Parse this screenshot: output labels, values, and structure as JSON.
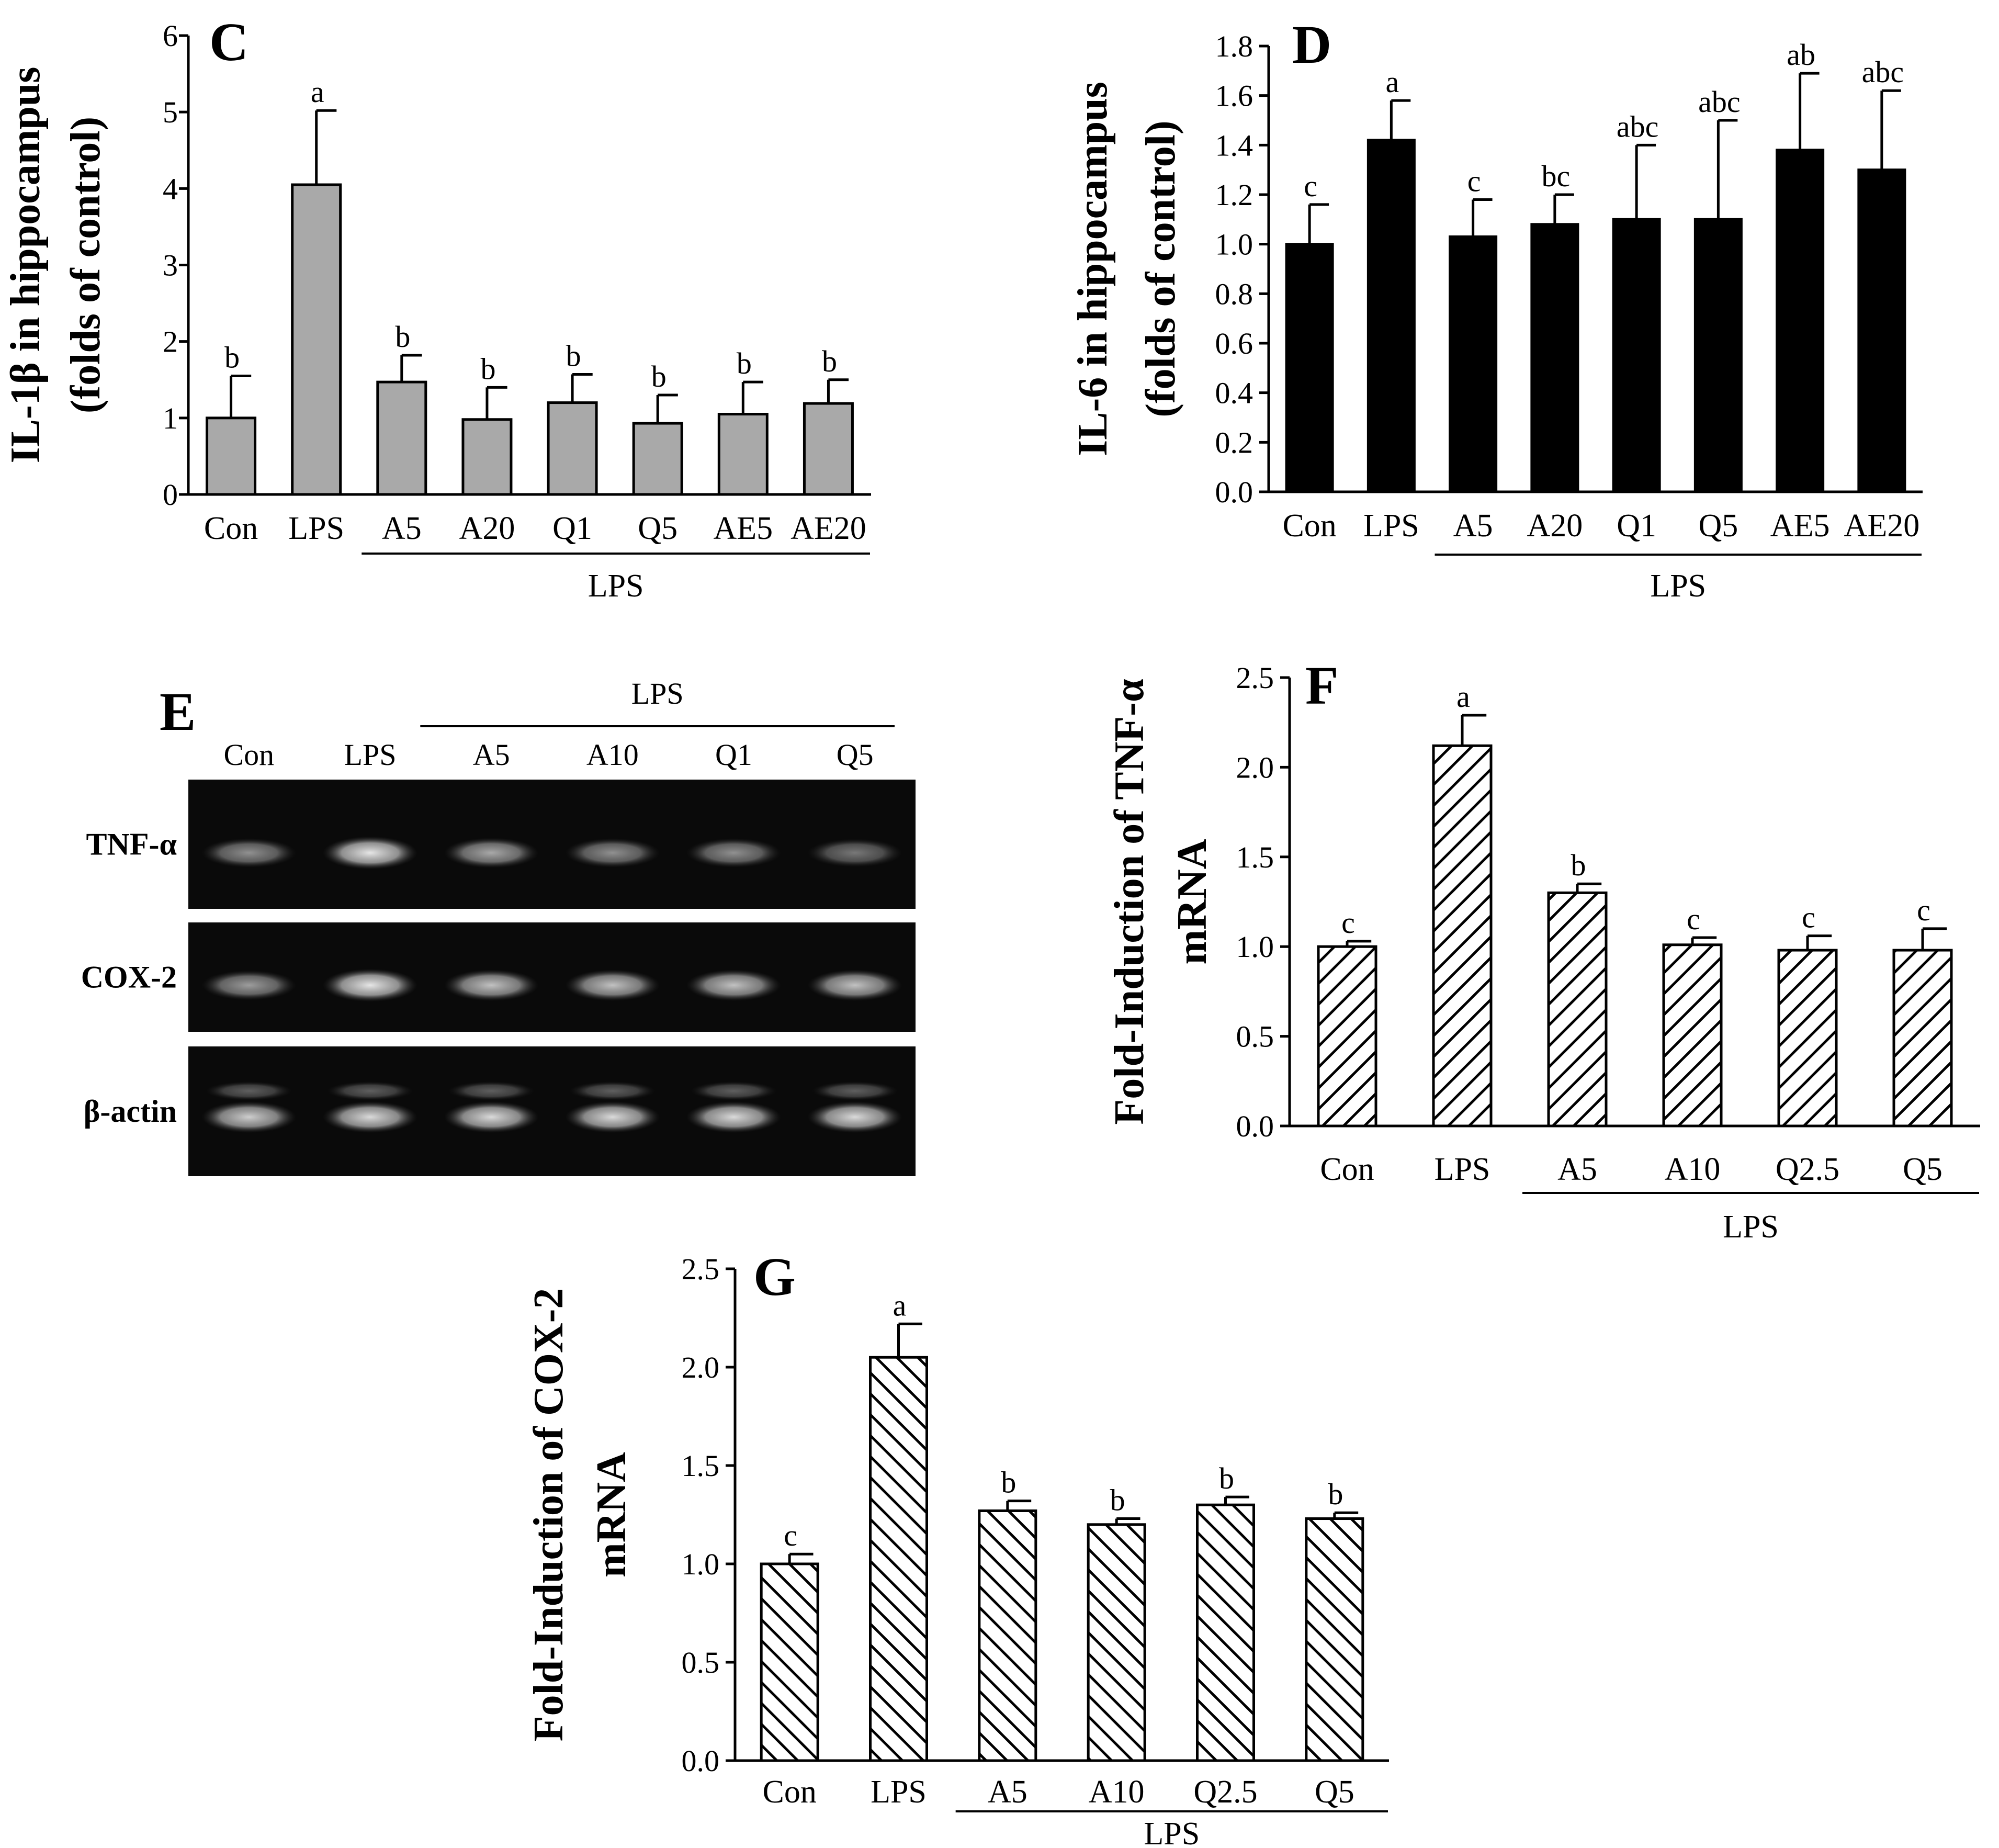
{
  "figure": {
    "panels": [
      "C",
      "D",
      "E",
      "F",
      "G"
    ]
  },
  "chart_data": [
    {
      "panel": "C",
      "type": "bar",
      "categories": [
        "Con",
        "LPS",
        "A5",
        "A20",
        "Q1",
        "Q5",
        "AE5",
        "AE20"
      ],
      "values": [
        1.0,
        4.05,
        1.47,
        0.98,
        1.2,
        0.93,
        1.05,
        1.19
      ],
      "errors": [
        0.55,
        0.97,
        0.35,
        0.42,
        0.37,
        0.37,
        0.42,
        0.31
      ],
      "letters": [
        "b",
        "a",
        "b",
        "b",
        "b",
        "b",
        "b",
        "b"
      ],
      "ylabel_lines": [
        "IL-1β in hippocampus",
        "(folds of control)"
      ],
      "ylim": [
        0,
        6
      ],
      "yticks": [
        "0",
        "1",
        "2",
        "3",
        "4",
        "5",
        "6"
      ],
      "group_label": "LPS",
      "bar_style": "gray",
      "bar_color": "#a9a9a9"
    },
    {
      "panel": "D",
      "type": "bar",
      "categories": [
        "Con",
        "LPS",
        "A5",
        "A20",
        "Q1",
        "Q5",
        "AE5",
        "AE20"
      ],
      "values": [
        1.0,
        1.42,
        1.03,
        1.08,
        1.1,
        1.1,
        1.38,
        1.3
      ],
      "errors": [
        0.16,
        0.16,
        0.15,
        0.12,
        0.3,
        0.4,
        0.31,
        0.32
      ],
      "letters": [
        "c",
        "a",
        "c",
        "bc",
        "abc",
        "abc",
        "ab",
        "abc"
      ],
      "ylabel_lines": [
        "IL-6 in hippocampus",
        "(folds of control)"
      ],
      "ylim": [
        0,
        1.8
      ],
      "yticks": [
        "0.0",
        "0.2",
        "0.4",
        "0.6",
        "0.8",
        "1.0",
        "1.2",
        "1.4",
        "1.6",
        "1.8"
      ],
      "group_label": "LPS",
      "bar_style": "black",
      "bar_color": "#000000"
    },
    {
      "panel": "F",
      "type": "bar",
      "categories": [
        "Con",
        "LPS",
        "A5",
        "A10",
        "Q2.5",
        "Q5"
      ],
      "values": [
        1.0,
        2.12,
        1.3,
        1.01,
        0.98,
        0.98
      ],
      "errors": [
        0.03,
        0.17,
        0.05,
        0.04,
        0.08,
        0.12
      ],
      "letters": [
        "c",
        "a",
        "b",
        "c",
        "c",
        "c"
      ],
      "ylabel_lines": [
        "Fold-Induction of TNF-α",
        "mRNA"
      ],
      "ylim": [
        0,
        2.5
      ],
      "yticks": [
        "0.0",
        "0.5",
        "1.0",
        "1.5",
        "2.0",
        "2.5"
      ],
      "group_label": "LPS",
      "bar_style": "hatch-forward"
    },
    {
      "panel": "G",
      "type": "bar",
      "categories": [
        "Con",
        "LPS",
        "A5",
        "A10",
        "Q2.5",
        "Q5"
      ],
      "values": [
        1.0,
        2.05,
        1.27,
        1.2,
        1.3,
        1.23
      ],
      "errors": [
        0.05,
        0.17,
        0.05,
        0.03,
        0.04,
        0.03
      ],
      "letters": [
        "c",
        "a",
        "b",
        "b",
        "b",
        "b"
      ],
      "ylabel_lines": [
        "Fold-Induction of COX-2",
        "mRNA"
      ],
      "ylim": [
        0,
        2.5
      ],
      "yticks": [
        "0.0",
        "0.5",
        "1.0",
        "1.5",
        "2.0",
        "2.5"
      ],
      "group_label": "LPS",
      "bar_style": "hatch-back"
    }
  ],
  "gel": {
    "panel": "E",
    "lanes": [
      "Con",
      "LPS",
      "A5",
      "A10",
      "Q1",
      "Q5"
    ],
    "group_label": "LPS",
    "rows": [
      {
        "label": "TNF-α",
        "intensity": [
          0.55,
          0.9,
          0.65,
          0.55,
          0.55,
          0.45
        ]
      },
      {
        "label": "COX-2",
        "intensity": [
          0.6,
          0.9,
          0.75,
          0.75,
          0.75,
          0.75
        ]
      },
      {
        "label": "β-actin",
        "intensity": [
          0.8,
          0.85,
          0.85,
          0.85,
          0.85,
          0.85
        ]
      }
    ]
  }
}
